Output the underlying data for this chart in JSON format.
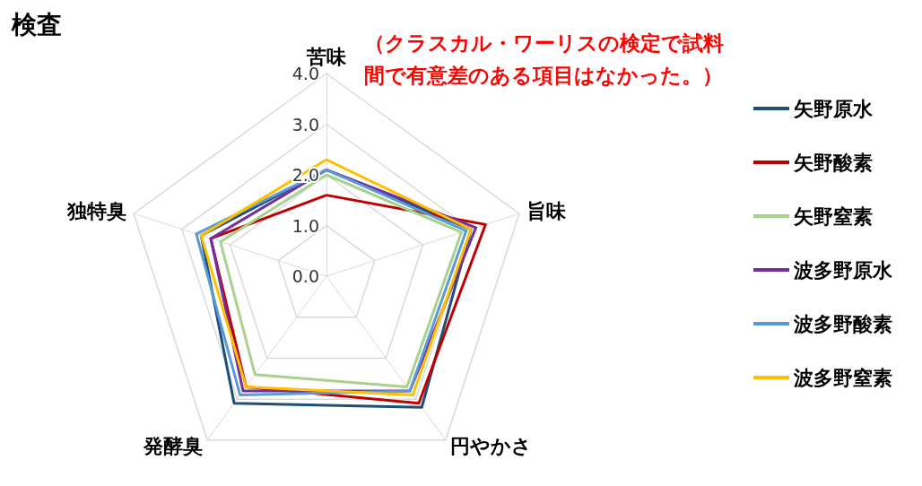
{
  "chart_data": {
    "type": "radar",
    "title": "検査",
    "annotations": [
      "（クラスカル・ワーリスの検定で試料間で有意差のある項目はなかった。）"
    ],
    "categories": [
      "苦味",
      "旨味",
      "円やかさ",
      "発酵臭",
      "独特臭"
    ],
    "ylim": [
      0,
      4
    ],
    "yticks": [
      {
        "value": 0,
        "label": "0.0"
      },
      {
        "value": 1,
        "label": "1.0"
      },
      {
        "value": 2,
        "label": "2.0"
      },
      {
        "value": 3,
        "label": "3.0"
      },
      {
        "value": 4,
        "label": "4.0"
      }
    ],
    "marker": "none",
    "legend": "right",
    "grid": true,
    "series": [
      {
        "name": "矢野原水",
        "color": "#1f4e79",
        "values": [
          2.1,
          3.0,
          3.2,
          3.1,
          2.6
        ]
      },
      {
        "name": "矢野酸素",
        "color": "#c00000",
        "values": [
          1.6,
          3.3,
          3.1,
          2.7,
          2.4
        ]
      },
      {
        "name": "矢野窒素",
        "color": "#a9d18e",
        "values": [
          2.0,
          2.8,
          2.7,
          2.4,
          2.2
        ]
      },
      {
        "name": "波多野原水",
        "color": "#7030a0",
        "values": [
          2.1,
          3.1,
          2.8,
          2.8,
          2.4
        ]
      },
      {
        "name": "波多野酸素",
        "color": "#5b9bd5",
        "values": [
          2.1,
          2.9,
          2.8,
          2.9,
          2.7
        ]
      },
      {
        "name": "波多野窒素",
        "color": "#ffc000",
        "values": [
          2.3,
          3.0,
          2.9,
          2.7,
          2.6
        ]
      }
    ]
  }
}
